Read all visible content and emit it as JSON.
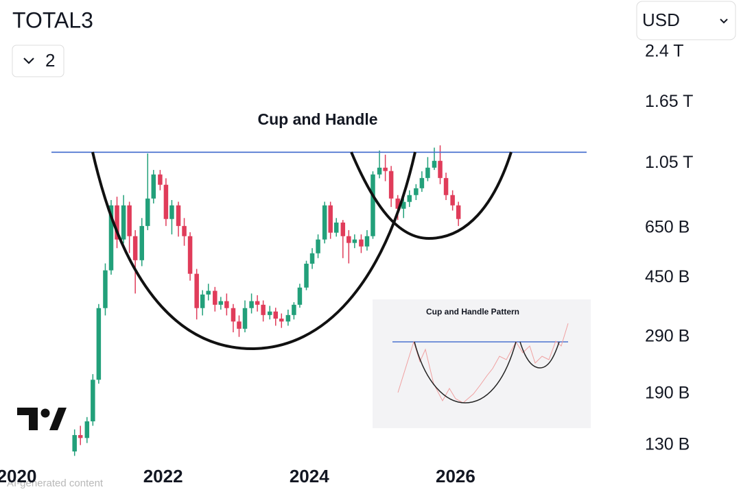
{
  "header": {
    "symbol": "TOTAL3",
    "interval_button": "2",
    "currency": "USD"
  },
  "chart_data": {
    "type": "candlestick",
    "title": "Cup and Handle",
    "x": [
      2020.79,
      2020.87,
      2020.96,
      2021.04,
      2021.12,
      2021.21,
      2021.29,
      2021.37,
      2021.46,
      2021.54,
      2021.62,
      2021.71,
      2021.79,
      2021.87,
      2021.96,
      2022.04,
      2022.12,
      2022.21,
      2022.29,
      2022.37,
      2022.46,
      2022.54,
      2022.62,
      2022.71,
      2022.79,
      2022.87,
      2022.96,
      2023.04,
      2023.12,
      2023.21,
      2023.29,
      2023.37,
      2023.46,
      2023.54,
      2023.62,
      2023.71,
      2023.79,
      2023.87,
      2023.96,
      2024.04,
      2024.12,
      2024.21,
      2024.29,
      2024.37,
      2024.46,
      2024.54,
      2024.62,
      2024.71,
      2024.79,
      2024.87,
      2024.96,
      2025.04,
      2025.12,
      2025.21,
      2025.29,
      2025.37,
      2025.46,
      2025.54,
      2025.62,
      2025.71,
      2025.79,
      2025.87,
      2025.96,
      2026.04
    ],
    "open": [
      124,
      140,
      137,
      155,
      211,
      359,
      475,
      769,
      597,
      769,
      612,
      512,
      660,
      809,
      967,
      896,
      695,
      769,
      660,
      612,
      463,
      359,
      397,
      408,
      368,
      378,
      359,
      325,
      308,
      359,
      378,
      368,
      341,
      350,
      332,
      325,
      341,
      368,
      418,
      499,
      539,
      597,
      769,
      628,
      677,
      612,
      582,
      597,
      567,
      612,
      967,
      1017,
      992,
      809,
      750,
      789,
      830,
      873,
      942,
      1017,
      1070,
      942,
      830,
      769
    ],
    "high": [
      146,
      150,
      160,
      220,
      370,
      500,
      800,
      820,
      830,
      790,
      640,
      700,
      1130,
      1000,
      1000,
      940,
      800,
      790,
      700,
      630,
      480,
      410,
      430,
      420,
      390,
      400,
      370,
      340,
      380,
      400,
      395,
      380,
      365,
      360,
      345,
      355,
      375,
      430,
      510,
      560,
      620,
      790,
      790,
      700,
      690,
      640,
      620,
      620,
      640,
      990,
      1155,
      1120,
      1030,
      830,
      810,
      860,
      900,
      990,
      1100,
      1180,
      1200,
      980,
      860,
      790
    ],
    "low": [
      120,
      130,
      132,
      150,
      205,
      340,
      460,
      560,
      580,
      540,
      400,
      490,
      640,
      780,
      860,
      660,
      620,
      610,
      570,
      440,
      330,
      340,
      380,
      350,
      355,
      340,
      300,
      290,
      300,
      345,
      350,
      325,
      330,
      315,
      310,
      315,
      330,
      360,
      410,
      480,
      520,
      580,
      600,
      610,
      520,
      500,
      560,
      540,
      550,
      600,
      940,
      920,
      760,
      690,
      700,
      760,
      800,
      850,
      920,
      1000,
      900,
      800,
      740,
      660
    ],
    "close": [
      140,
      137,
      155,
      211,
      359,
      475,
      769,
      597,
      769,
      612,
      512,
      660,
      809,
      967,
      896,
      695,
      769,
      660,
      612,
      463,
      359,
      397,
      408,
      368,
      378,
      359,
      325,
      308,
      359,
      378,
      368,
      341,
      350,
      332,
      325,
      341,
      368,
      418,
      499,
      539,
      597,
      769,
      628,
      677,
      612,
      582,
      597,
      567,
      612,
      967,
      1017,
      992,
      809,
      750,
      789,
      830,
      873,
      942,
      1017,
      1070,
      942,
      830,
      769,
      695
    ],
    "up_color": "#22a07a",
    "down_color": "#e03c5a",
    "xlim": [
      2019.77,
      2027.84
    ],
    "xticks": [
      2020,
      2022,
      2024,
      2026
    ],
    "ylim": [
      112,
      2600
    ],
    "yticks": [
      {
        "value": 130,
        "label": "130 B"
      },
      {
        "value": 190,
        "label": "190 B"
      },
      {
        "value": 290,
        "label": "290 B"
      },
      {
        "value": 450,
        "label": "450 B"
      },
      {
        "value": 650,
        "label": "650 B"
      },
      {
        "value": 1050,
        "label": "1.05 T"
      },
      {
        "value": 1650,
        "label": "1.65 T"
      },
      {
        "value": 2400,
        "label": "2.4 T"
      }
    ],
    "log": true,
    "grid": false,
    "resistance_level": 1140,
    "resistance_color": "#4a72d0"
  },
  "inset": {
    "title": "Cup and Handle Pattern"
  },
  "watermark": "AI-generated content"
}
